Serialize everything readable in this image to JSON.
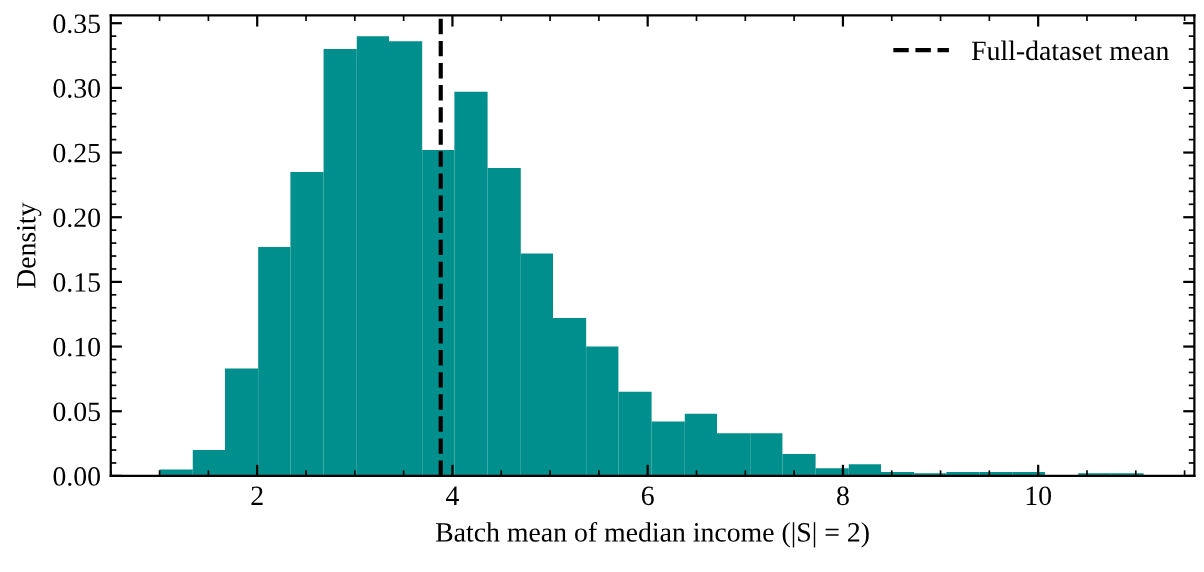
{
  "chart_data": {
    "type": "histogram",
    "xlabel": "Batch mean of median income (|S| = 2)",
    "ylabel": "Density",
    "bins": [
      1.0,
      1.34,
      1.67,
      2.01,
      2.34,
      2.68,
      3.02,
      3.35,
      3.69,
      4.02,
      4.36,
      4.7,
      5.03,
      5.37,
      5.7,
      6.04,
      6.38,
      6.71,
      7.05,
      7.38,
      7.72,
      8.06,
      8.39,
      8.73,
      9.06,
      9.4,
      9.74,
      10.07,
      10.41,
      10.74,
      11.08
    ],
    "values": [
      0.005,
      0.02,
      0.083,
      0.177,
      0.235,
      0.33,
      0.34,
      0.336,
      0.252,
      0.297,
      0.238,
      0.172,
      0.122,
      0.1,
      0.065,
      0.042,
      0.048,
      0.033,
      0.033,
      0.017,
      0.006,
      0.009,
      0.003,
      0.002,
      0.003,
      0.003,
      0.003,
      0,
      0.002,
      0.002
    ],
    "color": "#008f8c",
    "xlim": [
      0.5,
      11.6
    ],
    "xticks": [
      2,
      4,
      6,
      8,
      10
    ],
    "ylim": [
      0,
      0.356
    ],
    "yticks": [
      {
        "value": 0,
        "label": "0.00"
      },
      {
        "value": 0.05,
        "label": "0.05"
      },
      {
        "value": 0.1,
        "label": "0.10"
      },
      {
        "value": 0.15,
        "label": "0.15"
      },
      {
        "value": 0.2,
        "label": "0.20"
      },
      {
        "value": 0.25,
        "label": "0.25"
      },
      {
        "value": 0.3,
        "label": "0.30"
      },
      {
        "value": 0.35,
        "label": "0.35"
      }
    ],
    "ref_lines": [
      {
        "axis": "x",
        "value": 3.88,
        "label": "Full-dataset mean",
        "color": "#000000",
        "line_style": "dashed"
      }
    ],
    "legend": "top right",
    "grid": false
  }
}
